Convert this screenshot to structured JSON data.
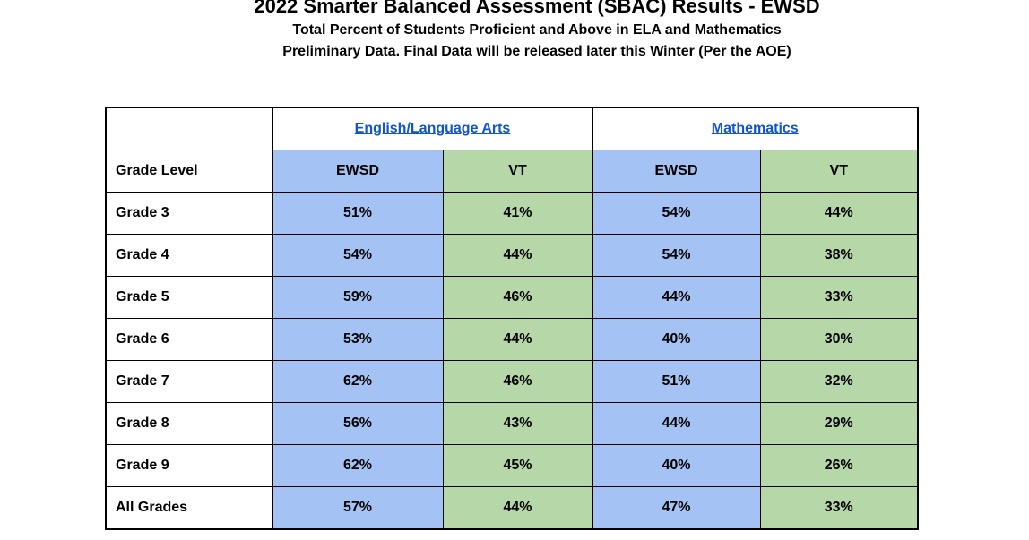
{
  "header": {
    "title": "2022 Smarter Balanced Assessment (SBAC) Results - EWSD",
    "subtitle": "Total Percent of Students Proficient and Above in ELA and Mathematics",
    "note": "Preliminary Data. Final Data will be released later this Winter (Per the AOE)"
  },
  "table": {
    "groups": [
      "English/Language Arts",
      "Mathematics"
    ],
    "columns": [
      "Grade Level",
      "EWSD",
      "VT",
      "EWSD",
      "VT"
    ],
    "rows": [
      [
        "Grade 3",
        "51%",
        "41%",
        "54%",
        "44%"
      ],
      [
        "Grade 4",
        "54%",
        "44%",
        "54%",
        "38%"
      ],
      [
        "Grade 5",
        "59%",
        "46%",
        "44%",
        "33%"
      ],
      [
        "Grade 6",
        "53%",
        "44%",
        "40%",
        "30%"
      ],
      [
        "Grade 7",
        "62%",
        "46%",
        "51%",
        "32%"
      ],
      [
        "Grade 8",
        "56%",
        "43%",
        "44%",
        "29%"
      ],
      [
        "Grade 9",
        "62%",
        "45%",
        "40%",
        "26%"
      ],
      [
        "All Grades",
        "57%",
        "44%",
        "47%",
        "33%"
      ]
    ]
  }
}
